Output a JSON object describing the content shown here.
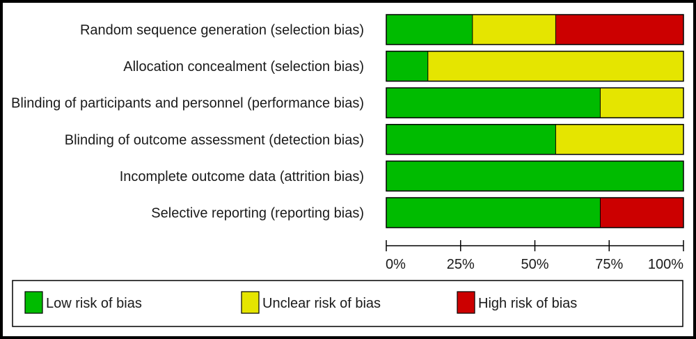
{
  "chart_data": {
    "type": "bar",
    "stacked": true,
    "orientation": "horizontal",
    "categories": [
      "Random sequence generation (selection bias)",
      "Allocation concealment (selection bias)",
      "Blinding of participants and personnel (performance bias)",
      "Blinding of outcome assessment (detection bias)",
      "Incomplete outcome data (attrition bias)",
      "Selective reporting (reporting bias)"
    ],
    "series": [
      {
        "name": "Low risk of bias",
        "color": "#00bb00",
        "values": [
          29,
          14,
          72,
          57,
          100,
          72
        ]
      },
      {
        "name": "Unclear risk of bias",
        "color": "#e5e500",
        "values": [
          28,
          86,
          28,
          43,
          0,
          0
        ]
      },
      {
        "name": "High risk of bias",
        "color": "#cc0000",
        "values": [
          43,
          0,
          0,
          0,
          0,
          28
        ]
      }
    ],
    "xticks": [
      "0%",
      "25%",
      "50%",
      "75%",
      "100%"
    ],
    "xlim": [
      0,
      100
    ],
    "legend_position": "bottom"
  }
}
